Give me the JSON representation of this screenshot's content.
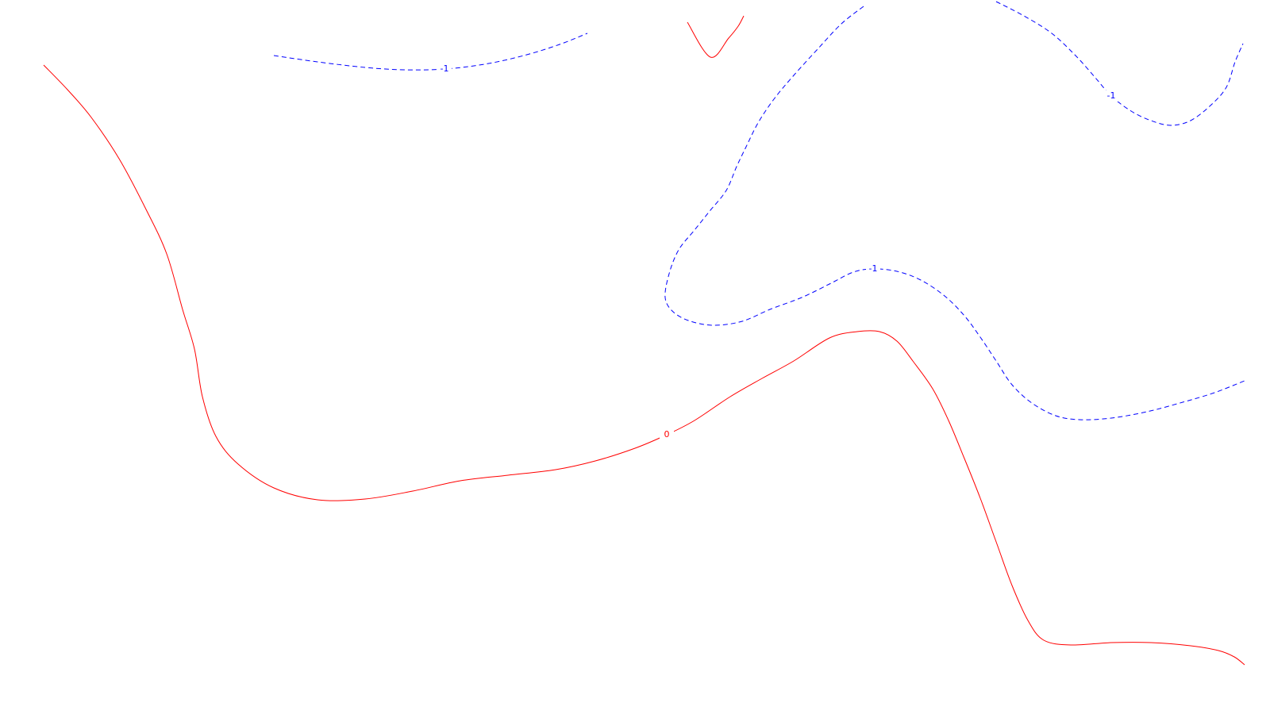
{
  "chart_data": {
    "type": "contour",
    "title": "",
    "xlabel": "",
    "ylabel": "",
    "grid": false,
    "legend": "none",
    "levels": [
      {
        "level": 0,
        "label": "0",
        "color": "#ff0000",
        "line_style": "solid",
        "segments": [
          {
            "name": "contour-0-main",
            "points": [
              [
                55,
                82
              ],
              [
                85,
                113
              ],
              [
                115,
                148
              ],
              [
                150,
                200
              ],
              [
                183,
                262
              ],
              [
                210,
                320
              ],
              [
                230,
                390
              ],
              [
                245,
                440
              ],
              [
                255,
                500
              ],
              [
                272,
                550
              ],
              [
                300,
                585
              ],
              [
                345,
                615
              ],
              [
                400,
                630
              ],
              [
                460,
                629
              ],
              [
                520,
                619
              ],
              [
                580,
                606
              ],
              [
                640,
                599
              ],
              [
                700,
                592
              ],
              [
                750,
                581
              ],
              [
                800,
                565
              ],
              [
                840,
                548
              ],
              [
                875,
                530
              ],
              [
                920,
                500
              ],
              [
                960,
                477
              ],
              [
                1000,
                455
              ],
              [
                1045,
                426
              ],
              [
                1080,
                418
              ],
              [
                1108,
                418
              ],
              [
                1130,
                430
              ],
              [
                1150,
                455
              ],
              [
                1175,
                490
              ],
              [
                1195,
                530
              ],
              [
                1215,
                578
              ],
              [
                1235,
                628
              ],
              [
                1255,
                683
              ],
              [
                1275,
                738
              ],
              [
                1295,
                782
              ],
              [
                1315,
                807
              ],
              [
                1350,
                813
              ],
              [
                1400,
                810
              ],
              [
                1450,
                810
              ],
              [
                1500,
                814
              ],
              [
                1535,
                820
              ],
              [
                1555,
                828
              ],
              [
                1568,
                838
              ]
            ],
            "label_at_index": 20
          },
          {
            "name": "contour-0-notch",
            "points": [
              [
                866,
                28
              ],
              [
                895,
                72
              ],
              [
                918,
                48
              ],
              [
                930,
                33
              ],
              [
                937,
                20
              ]
            ]
          }
        ]
      },
      {
        "level": -1,
        "label": "-1",
        "color": "#0000ff",
        "line_style": "dashed",
        "segments": [
          {
            "name": "contour-minus1-top-left",
            "points": [
              [
                345,
                70
              ],
              [
                400,
                78
              ],
              [
                460,
                85
              ],
              [
                510,
                88
              ],
              [
                560,
                87
              ],
              [
                610,
                81
              ],
              [
                660,
                70
              ],
              [
                705,
                56
              ],
              [
                740,
                42
              ]
            ],
            "label_at_index": 4
          },
          {
            "name": "contour-minus1-middle",
            "points": [
              [
                1088,
                8
              ],
              [
                1060,
                30
              ],
              [
                1030,
                62
              ],
              [
                1000,
                95
              ],
              [
                975,
                125
              ],
              [
                955,
                155
              ],
              [
                940,
                185
              ],
              [
                928,
                210
              ],
              [
                915,
                240
              ],
              [
                895,
                265
              ],
              [
                875,
                290
              ],
              [
                855,
                315
              ],
              [
                843,
                345
              ],
              [
                838,
                375
              ],
              [
                848,
                393
              ],
              [
                870,
                405
              ],
              [
                900,
                410
              ],
              [
                935,
                405
              ],
              [
                970,
                390
              ],
              [
                1010,
                375
              ],
              [
                1045,
                358
              ],
              [
                1075,
                343
              ],
              [
                1100,
                339
              ],
              [
                1130,
                342
              ],
              [
                1160,
                353
              ],
              [
                1190,
                373
              ],
              [
                1215,
                398
              ],
              [
                1235,
                425
              ],
              [
                1255,
                455
              ],
              [
                1275,
                485
              ],
              [
                1300,
                508
              ],
              [
                1330,
                524
              ],
              [
                1360,
                529
              ],
              [
                1400,
                527
              ],
              [
                1445,
                519
              ],
              [
                1490,
                507
              ],
              [
                1530,
                495
              ],
              [
                1568,
                480
              ]
            ],
            "label_at_index": 22
          },
          {
            "name": "contour-minus1-top-right",
            "points": [
              [
                1255,
                2
              ],
              [
                1290,
                20
              ],
              [
                1325,
                42
              ],
              [
                1355,
                70
              ],
              [
                1380,
                98
              ],
              [
                1400,
                121
              ],
              [
                1425,
                140
              ],
              [
                1450,
                152
              ],
              [
                1475,
                158
              ],
              [
                1500,
                152
              ],
              [
                1525,
                133
              ],
              [
                1545,
                110
              ],
              [
                1556,
                78
              ],
              [
                1566,
                55
              ]
            ],
            "label_at_index": 5
          }
        ]
      }
    ]
  }
}
